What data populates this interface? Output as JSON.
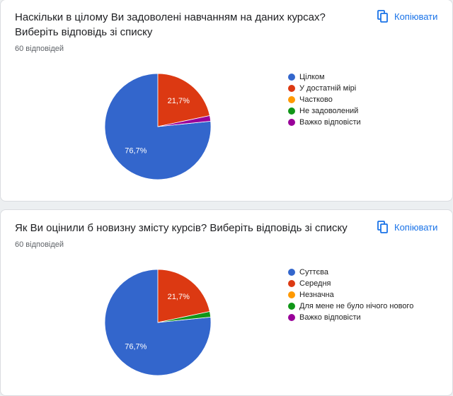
{
  "chart_data": [
    {
      "type": "pie",
      "title": "Наскільки в цілому Ви задоволені навчанням на даних курсах? Виберіть відповідь зі списку",
      "subtitle": "60 відповідей",
      "button": "Копіювати",
      "categories": [
        "Цілком",
        "У достатній мірі",
        "Частково",
        "Не задоволений",
        "Важко відповісти"
      ],
      "values": [
        76.7,
        21.7,
        0,
        0,
        1.7
      ],
      "value_labels": [
        "76,7%",
        "21,7%",
        null,
        null,
        null
      ],
      "colors": [
        "#3366cc",
        "#dc3912",
        "#ff9900",
        "#109618",
        "#990099"
      ]
    },
    {
      "type": "pie",
      "title": "Як Ви оцінили б новизну змісту курсів? Виберіть відповідь зі списку",
      "subtitle": "60 відповідей",
      "button": "Копіювати",
      "categories": [
        "Суттєва",
        "Середня",
        "Незначна",
        "Для мене не було нічого нового",
        "Важко відповісти"
      ],
      "values": [
        76.7,
        21.7,
        0,
        1.7,
        0
      ],
      "value_labels": [
        "76,7%",
        "21,7%",
        null,
        null,
        null
      ],
      "colors": [
        "#3366cc",
        "#dc3912",
        "#ff9900",
        "#109618",
        "#990099"
      ]
    }
  ]
}
